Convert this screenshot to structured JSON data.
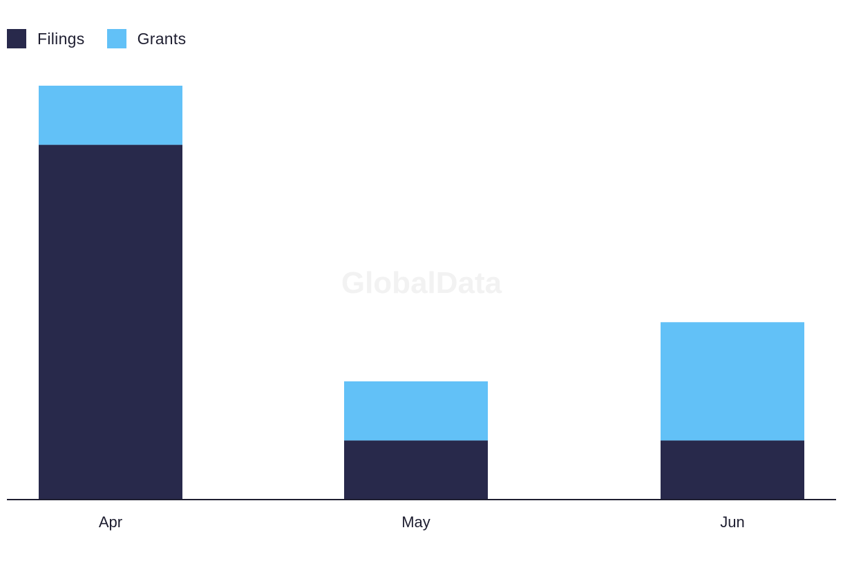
{
  "watermark": "GlobalData",
  "colors": {
    "filings": "#28294b",
    "grants": "#62c1f7",
    "axis": "#1e1e30"
  },
  "legend": [
    {
      "label": "Filings",
      "color": "#28294b"
    },
    {
      "label": "Grants",
      "color": "#62c1f7"
    }
  ],
  "chart_data": {
    "type": "bar",
    "stacked": true,
    "categories": [
      "Apr",
      "May",
      "Jun"
    ],
    "series": [
      {
        "name": "Filings",
        "values": [
          6,
          1,
          1
        ]
      },
      {
        "name": "Grants",
        "values": [
          1,
          1,
          2
        ]
      }
    ],
    "ylim": [
      0,
      7
    ],
    "grid": false,
    "legend_position": "top-left"
  }
}
